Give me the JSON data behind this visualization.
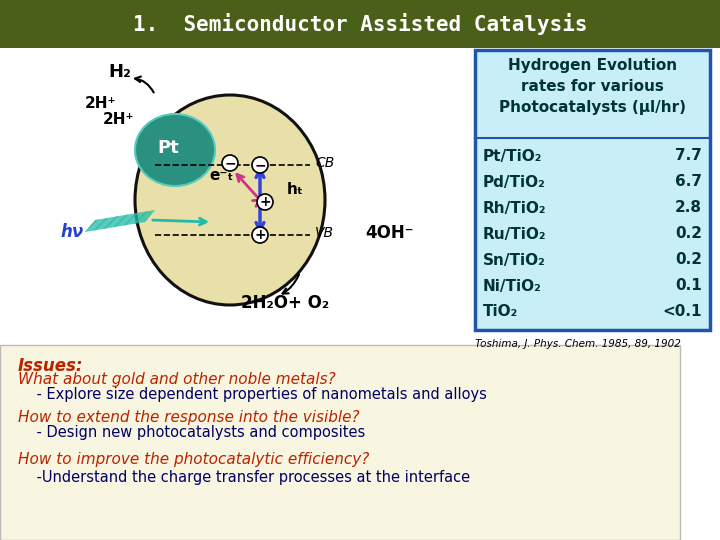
{
  "title": "1.  Semiconductor Assisted Catalysis",
  "title_bg": "#4a5f18",
  "title_color": "#ffffff",
  "title_fontsize": 15,
  "main_bg": "#ffffff",
  "bottom_bg": "#f8f5e0",
  "table_bg": "#c8eff8",
  "table_border_color": "#2255aa",
  "table_header": "Hydrogen Evolution\nrates for various\nPhotocatalysts (μl/hr)",
  "table_header_color": "#003333",
  "table_rows": [
    [
      "Pt/TiO₂",
      "7.7"
    ],
    [
      "Pd/TiO₂",
      "6.7"
    ],
    [
      "Rh/TiO₂",
      "2.8"
    ],
    [
      "Ru/TiO₂",
      "0.2"
    ],
    [
      "Sn/TiO₂",
      "0.2"
    ],
    [
      "Ni/TiO₂",
      "0.1"
    ],
    [
      "TiO₂",
      "<0.1"
    ]
  ],
  "table_row_color": "#003333",
  "citation": "Toshima, J. Phys. Chem. 1985, 89, 1902",
  "issues_label": "Issues:",
  "issues_color": "#bb2200",
  "questions": [
    "What about gold and other noble metals?",
    "    - Explore size dependent properties of nanometals and alloys",
    "How to extend the response into the visible?",
    "    - Design new photocatalysts and composites",
    "How to improve the photocatalytic efficiency?",
    "    -Understand the charge transfer processes at the interface"
  ],
  "question_colors": [
    "#bb2200",
    "#000066",
    "#bb2200",
    "#000066",
    "#bb2200",
    "#000066"
  ],
  "circle_color": "#e8e0a8",
  "circle_border": "#111111",
  "pt_color": "#2a9080",
  "arrow_blue": "#3344dd",
  "arrow_pink": "#cc3388",
  "arrow_teal": "#22bbaa",
  "bottom_border": "#bbbbbb"
}
